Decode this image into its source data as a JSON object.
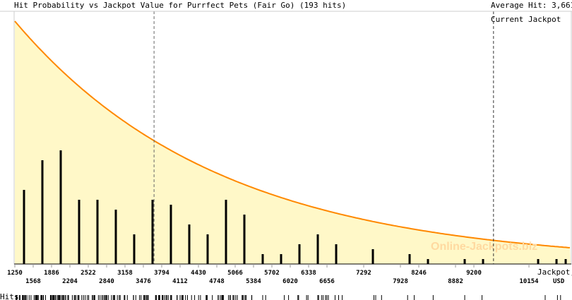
{
  "chart_data": {
    "type": "bar",
    "title": "Hit Probability vs Jackpot Value for Purrfect Pets (Fair Go) (193 hits)",
    "average_label": "Average Hit: 3,661",
    "current_label": "Current Jackpot",
    "average_value": 3661,
    "current_value": 9540,
    "xlabel": "Jackpot,",
    "xunit": "USD",
    "rug_label": "Hits",
    "watermark": "Online-Jackpots.biz",
    "xlim": [
      1250,
      10880
    ],
    "ticks_upper": [
      "1250",
      "1886",
      "2522",
      "3158",
      "3794",
      "4430",
      "5066",
      "5702",
      "6338",
      "7292",
      "8246",
      "9200"
    ],
    "ticks_lower": [
      "1568",
      "2204",
      "2840",
      "3476",
      "4112",
      "4748",
      "5384",
      "6020",
      "6656",
      "7928",
      "8882",
      "10154"
    ],
    "bins": [
      1409,
      1727,
      2045,
      2363,
      2681,
      2999,
      3317,
      3635,
      3953,
      4271,
      4589,
      4907,
      5225,
      5543,
      5861,
      6179,
      6497,
      6815,
      7451,
      8087,
      8405,
      9041,
      9359,
      10313,
      10631,
      10790
    ],
    "values": [
      15,
      21,
      23,
      13,
      13,
      11,
      6,
      13,
      12,
      8,
      6,
      13,
      10,
      2,
      2,
      4,
      6,
      4,
      3,
      2,
      1,
      1,
      1,
      1,
      1,
      1
    ],
    "colors": {
      "fill": "#fff8c8",
      "curve": "#ff8800",
      "bar": "#000000"
    }
  }
}
